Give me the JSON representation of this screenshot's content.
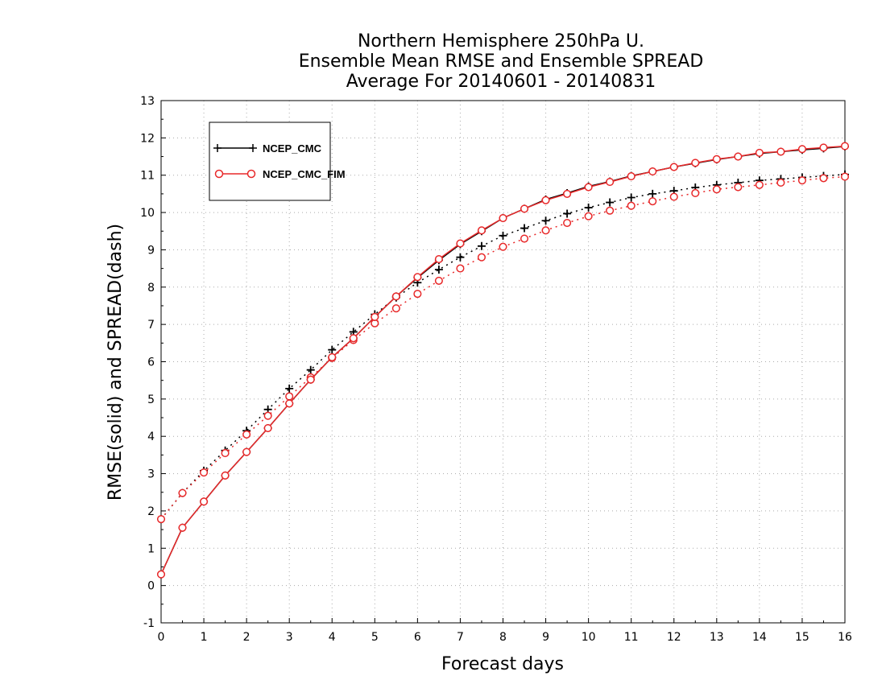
{
  "chart_data": {
    "type": "line",
    "title_lines": [
      "Northern Hemisphere 250hPa U.",
      "Ensemble Mean RMSE and Ensemble SPREAD",
      "Average For 20140601 - 20140831"
    ],
    "xlabel": "Forecast days",
    "ylabel": "RMSE(solid) and SPREAD(dash)",
    "xlim": [
      0,
      16
    ],
    "ylim": [
      -1,
      13
    ],
    "x_ticks": [
      "0",
      "1",
      "2",
      "3",
      "4",
      "5",
      "6",
      "7",
      "8",
      "9",
      "10",
      "11",
      "12",
      "13",
      "14",
      "15",
      "16"
    ],
    "y_ticks": [
      "-1",
      "0",
      "1",
      "2",
      "3",
      "4",
      "5",
      "6",
      "7",
      "8",
      "9",
      "10",
      "11",
      "12",
      "13"
    ],
    "grid": "dotted",
    "legend_position": "top-left",
    "x": [
      0,
      0.5,
      1,
      1.5,
      2,
      2.5,
      3,
      3.5,
      4,
      4.5,
      5,
      5.5,
      6,
      6.5,
      7,
      7.5,
      8,
      8.5,
      9,
      9.5,
      10,
      10.5,
      11,
      11.5,
      12,
      12.5,
      13,
      13.5,
      14,
      14.5,
      15,
      15.5,
      16
    ],
    "series": [
      {
        "name": "NCEP_CMC",
        "color": "#000000",
        "marker": "plus",
        "rmse": [
          0.3,
          1.55,
          2.25,
          2.95,
          3.58,
          4.22,
          4.88,
          5.52,
          6.12,
          6.63,
          7.2,
          7.75,
          8.25,
          8.72,
          9.15,
          9.5,
          9.85,
          10.1,
          10.35,
          10.52,
          10.7,
          10.83,
          10.98,
          11.1,
          11.22,
          11.32,
          11.42,
          11.5,
          11.58,
          11.63,
          11.68,
          11.72,
          11.77
        ],
        "spread": [
          1.78,
          2.48,
          3.08,
          3.62,
          4.15,
          4.72,
          5.28,
          5.78,
          6.32,
          6.8,
          7.27,
          7.72,
          8.12,
          8.47,
          8.8,
          9.1,
          9.38,
          9.58,
          9.78,
          9.97,
          10.13,
          10.27,
          10.4,
          10.5,
          10.58,
          10.67,
          10.74,
          10.8,
          10.86,
          10.9,
          10.94,
          10.98,
          11.02
        ]
      },
      {
        "name": "NCEP_CMC_FIM",
        "color": "#e8292a",
        "marker": "circle",
        "rmse": [
          0.3,
          1.55,
          2.25,
          2.95,
          3.58,
          4.22,
          4.88,
          5.52,
          6.12,
          6.63,
          7.2,
          7.75,
          8.27,
          8.75,
          9.17,
          9.52,
          9.85,
          10.1,
          10.33,
          10.5,
          10.68,
          10.82,
          10.97,
          11.1,
          11.22,
          11.33,
          11.43,
          11.5,
          11.6,
          11.63,
          11.7,
          11.74,
          11.78
        ],
        "spread": [
          1.78,
          2.48,
          3.03,
          3.55,
          4.05,
          4.55,
          5.07,
          5.58,
          6.1,
          6.58,
          7.03,
          7.43,
          7.82,
          8.17,
          8.5,
          8.8,
          9.08,
          9.3,
          9.52,
          9.72,
          9.9,
          10.05,
          10.18,
          10.3,
          10.42,
          10.52,
          10.62,
          10.68,
          10.74,
          10.8,
          10.86,
          10.92,
          10.96
        ]
      }
    ]
  }
}
